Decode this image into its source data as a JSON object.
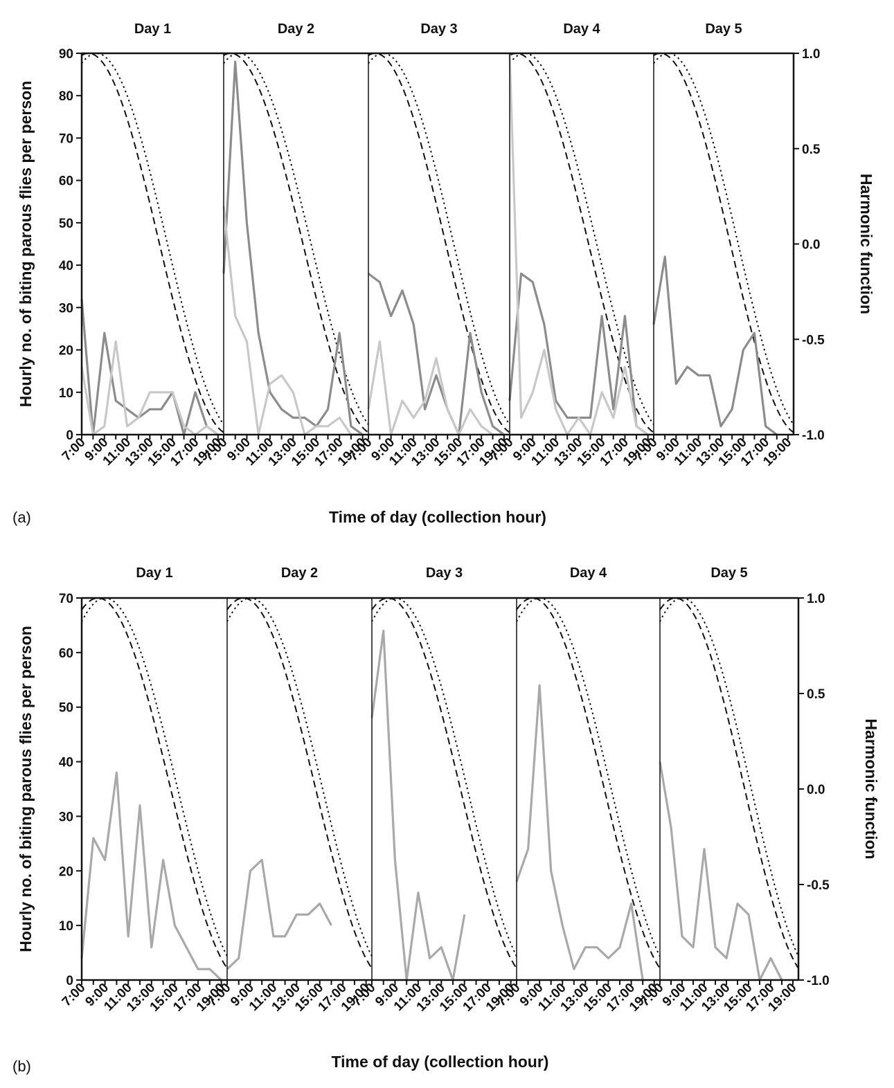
{
  "chart_data": [
    {
      "type": "line",
      "panel_label": "(a)",
      "days": [
        "Day 1",
        "Day 2",
        "Day 3",
        "Day 4",
        "Day 5"
      ],
      "x_ticks": [
        "7:00",
        "9:00",
        "11:00",
        "13:00",
        "15:00",
        "17:00",
        "19:00"
      ],
      "xlabel": "Time of day (collection hour)",
      "ylabel": "Hourly no. of biting parous flies per person",
      "y2label": "Harmonic function",
      "ylim": [
        0,
        90
      ],
      "y_ticks": [
        "0",
        "10",
        "20",
        "30",
        "40",
        "50",
        "60",
        "70",
        "80",
        "90"
      ],
      "y2lim": [
        -1,
        1
      ],
      "y2_ticks": [
        "-1.0",
        "-0.5",
        "0.0",
        "0.5",
        "1.0"
      ],
      "harmonics": [
        {
          "style": "dashed",
          "peak_hour": 7.6
        },
        {
          "style": "dotted",
          "peak_hour": 8.3
        }
      ],
      "series": [
        {
          "color": "#8c8c8c",
          "values_by_day": [
            [
              32,
              0,
              24,
              8,
              6,
              4,
              6,
              6,
              10,
              0,
              10,
              2,
              0
            ],
            [
              38,
              88,
              50,
              24,
              10,
              6,
              4,
              4,
              2,
              6,
              24,
              2,
              0
            ],
            [
              38,
              36,
              28,
              34,
              26,
              6,
              14,
              6,
              0,
              24,
              10,
              2,
              0
            ],
            [
              8,
              38,
              36,
              26,
              8,
              4,
              4,
              4,
              28,
              6,
              28,
              2,
              0
            ],
            [
              26,
              42,
              12,
              16,
              14,
              14,
              2,
              6,
              20,
              24,
              2,
              0
            ]
          ]
        },
        {
          "color": "#c8c8c8",
          "values_by_day": [
            [
              16,
              0,
              2,
              22,
              2,
              4,
              10,
              10,
              10,
              2,
              0,
              2,
              0
            ],
            [
              54,
              28,
              22,
              0,
              12,
              14,
              10,
              0,
              2,
              2,
              4,
              0,
              0
            ],
            [
              6,
              22,
              0,
              8,
              4,
              8,
              18,
              6,
              0,
              6,
              2,
              0,
              0
            ],
            [
              90,
              4,
              10,
              20,
              6,
              0,
              4,
              0,
              10,
              4,
              16,
              2,
              0
            ]
          ]
        }
      ]
    },
    {
      "type": "line",
      "panel_label": "(b)",
      "days": [
        "Day 1",
        "Day 2",
        "Day 3",
        "Day 4",
        "Day 5"
      ],
      "x_ticks": [
        "7:00",
        "9:00",
        "11:00",
        "13:00",
        "15:00",
        "17:00",
        "19:00"
      ],
      "xlabel": "Time of day (collection hour)",
      "ylabel": "Hourly no. of biting parous flies per person",
      "y2label": "Harmonic function",
      "ylim": [
        0,
        70
      ],
      "y_ticks": [
        "0",
        "10",
        "20",
        "30",
        "40",
        "50",
        "60",
        "70"
      ],
      "y2lim": [
        -1,
        1
      ],
      "y2_ticks": [
        "-1.0",
        "-0.5",
        "0.0",
        "0.5",
        "1.0"
      ],
      "harmonics": [
        {
          "style": "dashed",
          "peak_hour": 8.4
        },
        {
          "style": "dotted",
          "peak_hour": 9.0
        }
      ],
      "series": [
        {
          "color": "#a9a9a9",
          "values_by_day": [
            [
              4,
              26,
              22,
              38,
              8,
              32,
              6,
              22,
              10,
              6,
              2,
              2,
              0
            ],
            [
              2,
              4,
              20,
              22,
              8,
              8,
              12,
              12,
              14,
              10
            ],
            [
              48,
              64,
              22,
              0,
              16,
              4,
              6,
              0,
              12
            ],
            [
              18,
              24,
              54,
              20,
              10,
              2,
              6,
              6,
              4,
              6,
              14,
              0
            ],
            [
              40,
              28,
              8,
              6,
              24,
              6,
              4,
              14,
              12,
              0,
              4,
              0
            ]
          ]
        }
      ]
    }
  ]
}
